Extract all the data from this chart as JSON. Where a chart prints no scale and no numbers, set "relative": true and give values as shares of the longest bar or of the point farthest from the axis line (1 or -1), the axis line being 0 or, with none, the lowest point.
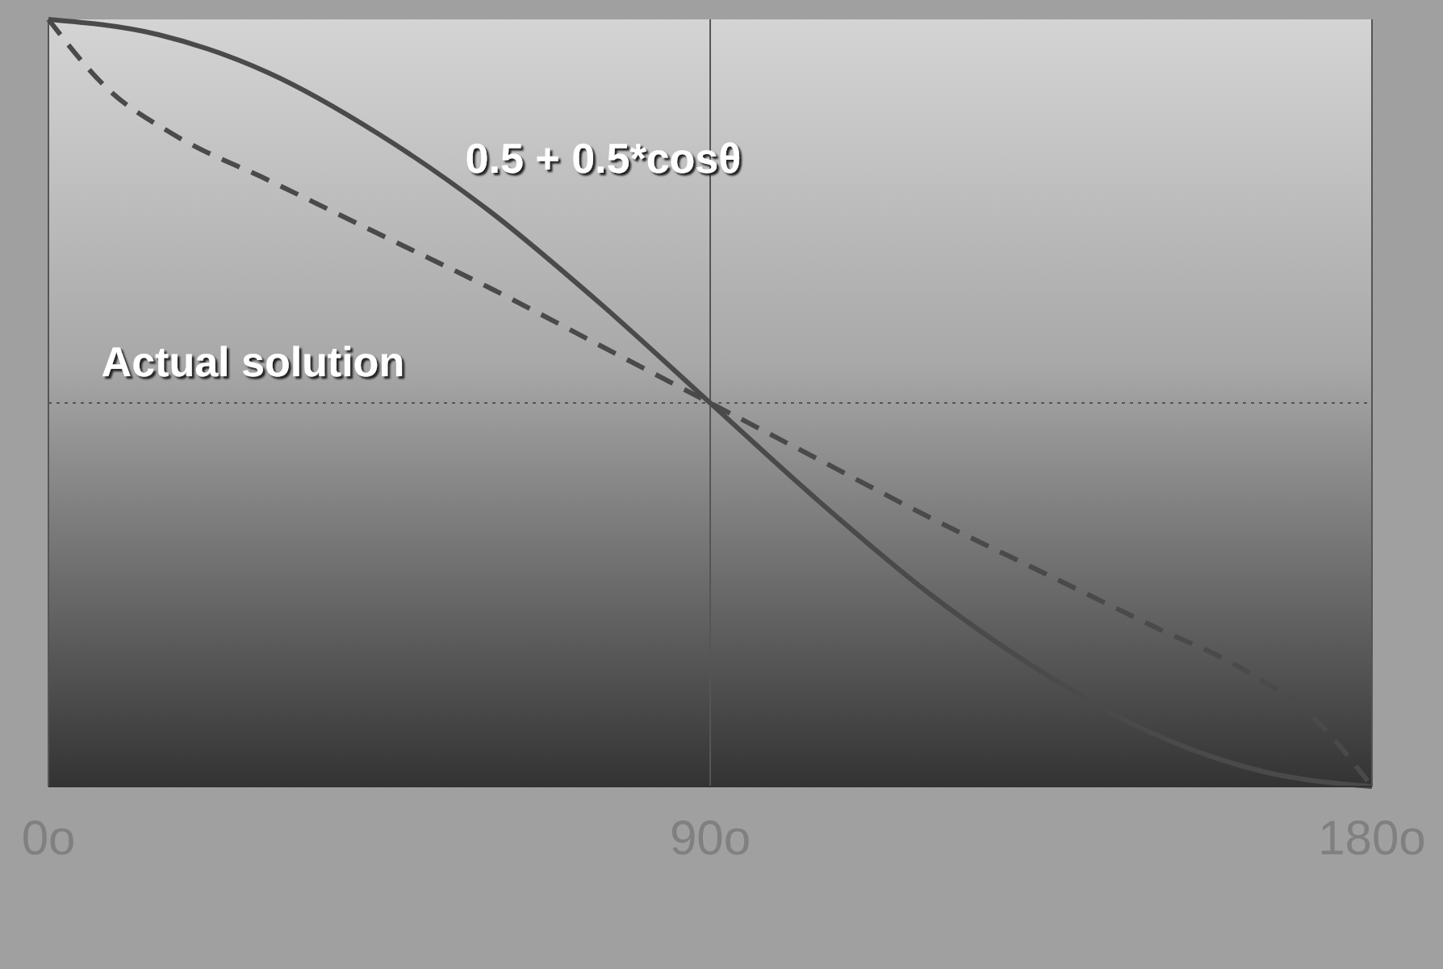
{
  "chart_data": {
    "type": "line",
    "relative": true,
    "xlim": [
      0,
      180
    ],
    "xticks": [
      {
        "value": 0,
        "label": "0o"
      },
      {
        "value": 90,
        "label": "90o"
      },
      {
        "value": 180,
        "label": "180o"
      }
    ],
    "grid": "x",
    "series": [
      {
        "color": "#4a4a4a",
        "line_style": "solid",
        "x": [
          0,
          15,
          30,
          45,
          60,
          75,
          90,
          105,
          120,
          135,
          150,
          165,
          180
        ],
        "values": [
          1,
          0.98,
          0.93,
          0.85,
          0.75,
          0.63,
          0.5,
          0.37,
          0.25,
          0.15,
          0.07,
          0.02,
          0
        ]
      },
      {
        "color": "#4a4a4a",
        "line_style": "dashed",
        "x": [
          0,
          8,
          17,
          30,
          45,
          60,
          75,
          90,
          105,
          120,
          135,
          150,
          163,
          172,
          180
        ],
        "values": [
          1,
          0.91,
          0.85,
          0.79,
          0.72,
          0.65,
          0.575,
          0.5,
          0.425,
          0.35,
          0.28,
          0.21,
          0.15,
          0.09,
          0
        ]
      }
    ],
    "ref_lines": [
      {
        "axis": "y",
        "value": 0.5,
        "line_style": "dotted",
        "color": "#555555"
      }
    ],
    "annotations": [
      "0.5 + 0.5*cosθ",
      "Actual solution"
    ]
  }
}
